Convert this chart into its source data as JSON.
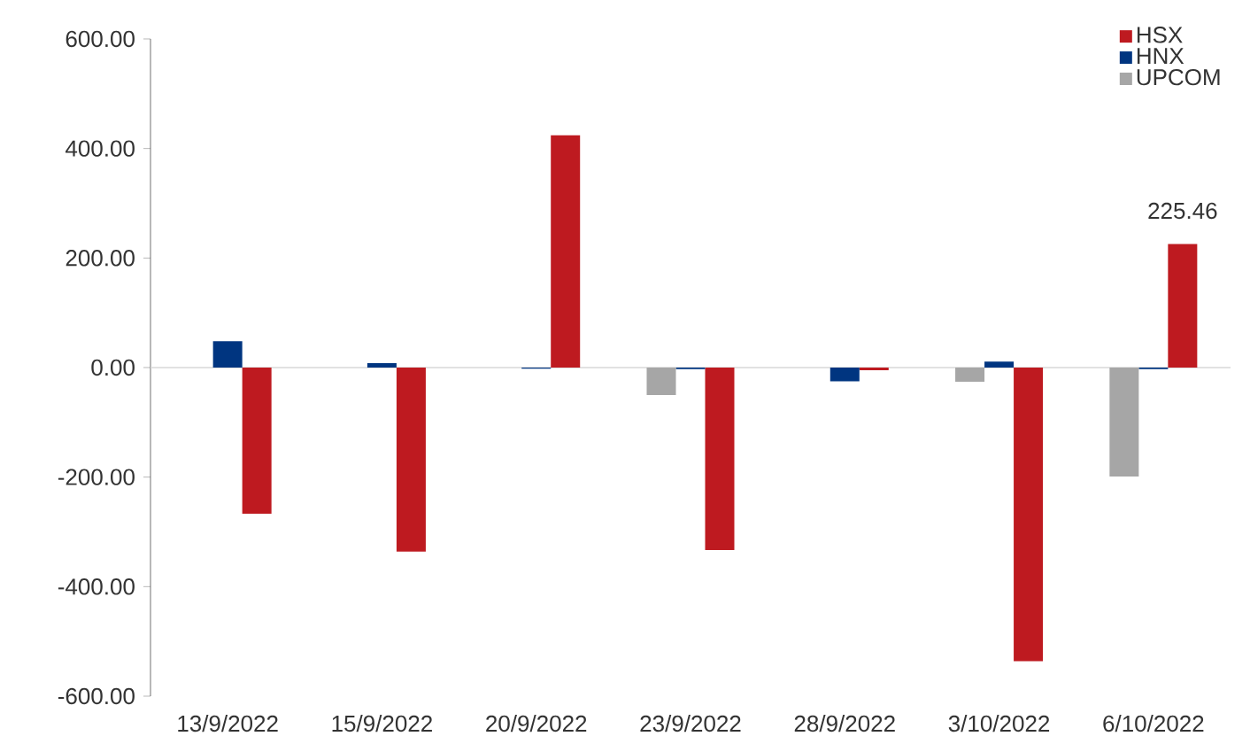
{
  "chart_data": {
    "type": "bar",
    "categories": [
      "13/9/2022",
      "15/9/2022",
      "20/9/2022",
      "23/9/2022",
      "28/9/2022",
      "3/10/2022",
      "6/10/2022"
    ],
    "series": [
      {
        "name": "HSX",
        "color": "#be1a20",
        "values": [
          -267,
          -336,
          424,
          -333,
          -5,
          -536,
          225.46
        ],
        "value_labels": [
          null,
          null,
          null,
          null,
          null,
          null,
          "225.46"
        ]
      },
      {
        "name": "HNX",
        "color": "#003580",
        "values": [
          48,
          8,
          -2,
          -3,
          -25,
          11,
          -3
        ]
      },
      {
        "name": "UPCOM",
        "color": "#a6a6a6",
        "values": [
          null,
          null,
          null,
          -50,
          0,
          -26,
          -199
        ]
      }
    ],
    "ylim": [
      -600,
      600
    ],
    "yticks": [
      {
        "value": -600,
        "label": "-600.00"
      },
      {
        "value": -400,
        "label": "-400.00"
      },
      {
        "value": -200,
        "label": "-200.00"
      },
      {
        "value": 0,
        "label": "0.00"
      },
      {
        "value": 200,
        "label": "200.00"
      },
      {
        "value": 400,
        "label": "400.00"
      },
      {
        "value": 600,
        "label": "600.00"
      }
    ],
    "legend": "top right"
  }
}
